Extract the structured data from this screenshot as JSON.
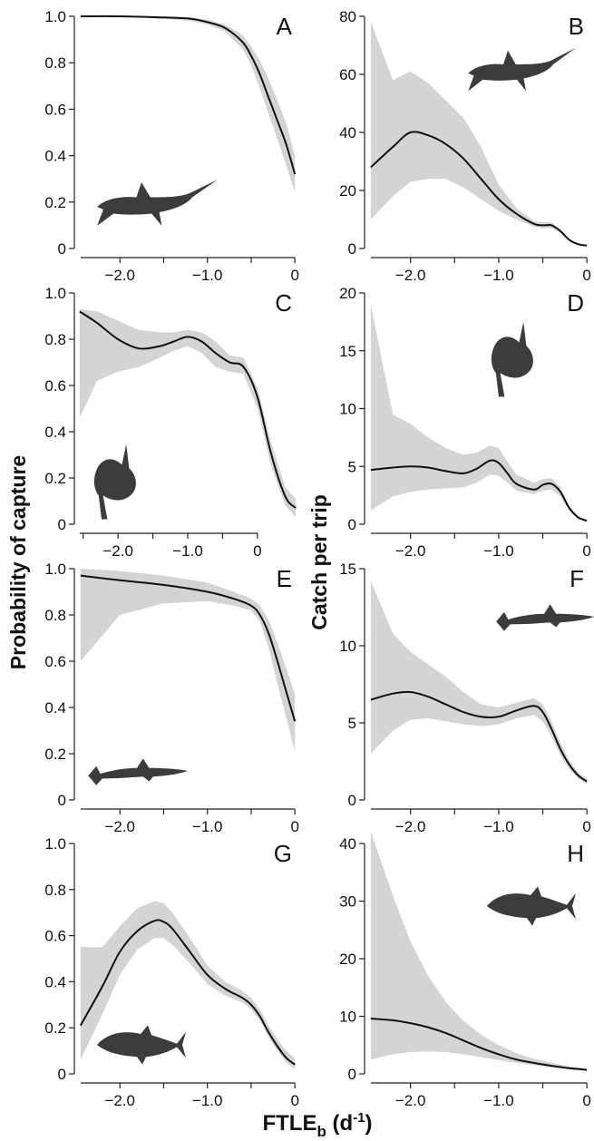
{
  "figure": {
    "ylabel_left": "Probability of capture",
    "ylabel_right": "Catch per trip",
    "xlabel_main": "FTLE",
    "xlabel_sub": "b",
    "xlabel_unit_open": " (d",
    "xlabel_unit_sup": "-1",
    "xlabel_unit_close": ")"
  },
  "colors": {
    "band": "#d4d4d4",
    "line": "#111111",
    "silhouette": "#3c3c3c"
  },
  "chart_data": [
    {
      "panel": "A",
      "type": "line",
      "species_icon": "swordfish-icon",
      "xlim": [
        -2.5,
        0.05
      ],
      "ylim": [
        0,
        1.0
      ],
      "xticks": [
        -2.0,
        -1.0,
        0
      ],
      "xtick_labels": [
        "−2.0",
        "−1.0",
        "0"
      ],
      "yticks": [
        0,
        0.2,
        0.4,
        0.6,
        0.8,
        1.0
      ],
      "ytick_labels": [
        "0",
        "0.2",
        "0.4",
        "0.6",
        "0.8",
        "1.0"
      ],
      "x": [
        -2.45,
        -2.0,
        -1.5,
        -1.2,
        -1.0,
        -0.8,
        -0.6,
        -0.5,
        -0.4,
        -0.3,
        -0.2,
        -0.1,
        0.0
      ],
      "y": [
        1.0,
        1.0,
        0.995,
        0.99,
        0.975,
        0.95,
        0.89,
        0.83,
        0.75,
        0.65,
        0.55,
        0.45,
        0.32
      ],
      "lower": [
        1.0,
        1.0,
        0.99,
        0.98,
        0.965,
        0.935,
        0.86,
        0.79,
        0.69,
        0.58,
        0.47,
        0.36,
        0.24
      ],
      "upper": [
        1.0,
        1.0,
        1.0,
        0.995,
        0.985,
        0.965,
        0.92,
        0.87,
        0.81,
        0.73,
        0.64,
        0.54,
        0.4
      ]
    },
    {
      "panel": "B",
      "type": "line",
      "species_icon": "swordfish-icon",
      "xlim": [
        -2.5,
        0.05
      ],
      "ylim": [
        0,
        80
      ],
      "xticks": [
        -2.0,
        -1.0,
        0
      ],
      "xtick_labels": [
        "−2.0",
        "−1.0",
        "0"
      ],
      "yticks": [
        0,
        20,
        40,
        60,
        80
      ],
      "ytick_labels": [
        "0",
        "20",
        "40",
        "60",
        "80"
      ],
      "x": [
        -2.45,
        -2.2,
        -2.0,
        -1.8,
        -1.6,
        -1.4,
        -1.2,
        -1.0,
        -0.8,
        -0.6,
        -0.5,
        -0.4,
        -0.3,
        -0.2,
        -0.1,
        0.0
      ],
      "y": [
        28,
        35,
        40,
        39,
        36,
        31,
        24,
        17,
        12,
        8.5,
        8,
        8,
        6,
        3,
        1.5,
        1
      ],
      "lower": [
        10,
        18,
        23,
        24,
        24,
        21,
        17,
        13,
        10,
        7.5,
        7,
        7,
        5.5,
        2.8,
        1.3,
        0.8
      ],
      "upper": [
        78,
        58,
        61,
        57,
        51,
        45,
        35,
        22,
        14,
        9.5,
        9,
        9,
        6.5,
        3.3,
        1.7,
        1.2
      ]
    },
    {
      "panel": "C",
      "type": "line",
      "species_icon": "sunfish-icon",
      "xlim": [
        -2.6,
        0.6
      ],
      "ylim": [
        0,
        1.0
      ],
      "xticks": [
        -2.0,
        -1.0,
        0
      ],
      "xtick_labels": [
        "−2.0",
        "−1.0",
        "0"
      ],
      "yticks": [
        0,
        0.2,
        0.4,
        0.6,
        0.8,
        1.0
      ],
      "ytick_labels": [
        "0",
        "0.2",
        "0.4",
        "0.6",
        "0.8",
        "1.0"
      ],
      "x": [
        -2.55,
        -2.3,
        -2.0,
        -1.7,
        -1.4,
        -1.2,
        -1.0,
        -0.8,
        -0.6,
        -0.4,
        -0.2,
        0.0,
        0.2,
        0.4,
        0.55
      ],
      "y": [
        0.92,
        0.87,
        0.8,
        0.76,
        0.77,
        0.79,
        0.81,
        0.79,
        0.74,
        0.7,
        0.68,
        0.55,
        0.3,
        0.12,
        0.07
      ],
      "lower": [
        0.46,
        0.62,
        0.66,
        0.68,
        0.72,
        0.75,
        0.77,
        0.74,
        0.68,
        0.66,
        0.65,
        0.5,
        0.25,
        0.08,
        0.03
      ],
      "upper": [
        0.93,
        0.92,
        0.88,
        0.84,
        0.83,
        0.83,
        0.84,
        0.83,
        0.79,
        0.73,
        0.72,
        0.59,
        0.35,
        0.16,
        0.11
      ]
    },
    {
      "panel": "D",
      "type": "line",
      "species_icon": "sunfish-icon",
      "xlim": [
        -2.5,
        0.05
      ],
      "ylim": [
        0,
        20
      ],
      "xticks": [
        -2.0,
        -1.0,
        0
      ],
      "xtick_labels": [
        "−2.0",
        "−1.0",
        "0"
      ],
      "yticks": [
        0,
        5,
        10,
        15,
        20
      ],
      "ytick_labels": [
        "0",
        "5",
        "10",
        "15",
        "20"
      ],
      "x": [
        -2.45,
        -2.2,
        -2.0,
        -1.8,
        -1.6,
        -1.4,
        -1.25,
        -1.1,
        -1.0,
        -0.9,
        -0.8,
        -0.6,
        -0.5,
        -0.4,
        -0.3,
        -0.2,
        -0.1,
        0.0
      ],
      "y": [
        4.7,
        4.9,
        5.0,
        4.9,
        4.6,
        4.4,
        4.8,
        5.5,
        5.3,
        4.4,
        3.5,
        3.0,
        3.4,
        3.5,
        2.8,
        1.4,
        0.6,
        0.3
      ],
      "lower": [
        1.2,
        2.4,
        2.8,
        3.0,
        3.1,
        3.2,
        3.6,
        4.3,
        4.2,
        3.6,
        2.9,
        2.6,
        2.9,
        3.0,
        2.4,
        1.2,
        0.5,
        0.2
      ],
      "upper": [
        19,
        9.5,
        8.7,
        7.5,
        6.6,
        6.0,
        6.2,
        6.8,
        6.6,
        5.4,
        4.3,
        3.6,
        3.9,
        4.0,
        3.2,
        1.6,
        0.7,
        0.4
      ]
    },
    {
      "panel": "E",
      "type": "line",
      "species_icon": "shark-icon",
      "xlim": [
        -2.5,
        0.05
      ],
      "ylim": [
        0,
        1.0
      ],
      "xticks": [
        -2.0,
        -1.0,
        0
      ],
      "xtick_labels": [
        "−2.0",
        "−1.0",
        "0"
      ],
      "yticks": [
        0,
        0.2,
        0.4,
        0.6,
        0.8,
        1.0
      ],
      "ytick_labels": [
        "0",
        "0.2",
        "0.4",
        "0.6",
        "0.8",
        "1.0"
      ],
      "x": [
        -2.45,
        -2.0,
        -1.5,
        -1.0,
        -0.7,
        -0.5,
        -0.4,
        -0.3,
        -0.2,
        -0.1,
        0.0
      ],
      "y": [
        0.97,
        0.95,
        0.93,
        0.9,
        0.87,
        0.84,
        0.8,
        0.72,
        0.6,
        0.47,
        0.34
      ],
      "lower": [
        0.6,
        0.8,
        0.85,
        0.86,
        0.84,
        0.82,
        0.77,
        0.66,
        0.5,
        0.36,
        0.21
      ],
      "upper": [
        1.0,
        0.99,
        0.97,
        0.94,
        0.9,
        0.87,
        0.84,
        0.78,
        0.68,
        0.57,
        0.46
      ]
    },
    {
      "panel": "F",
      "type": "line",
      "species_icon": "shark-icon",
      "xlim": [
        -2.5,
        0.05
      ],
      "ylim": [
        0,
        15
      ],
      "xticks": [
        -2.0,
        -1.0,
        0
      ],
      "xtick_labels": [
        "−2.0",
        "−1.0",
        "0"
      ],
      "yticks": [
        0,
        5,
        10,
        15
      ],
      "ytick_labels": [
        "0",
        "5",
        "10",
        "15"
      ],
      "x": [
        -2.45,
        -2.2,
        -2.0,
        -1.8,
        -1.6,
        -1.4,
        -1.2,
        -1.0,
        -0.8,
        -0.6,
        -0.5,
        -0.4,
        -0.3,
        -0.2,
        -0.1,
        0.0
      ],
      "y": [
        6.5,
        6.9,
        7.0,
        6.7,
        6.2,
        5.7,
        5.4,
        5.4,
        5.8,
        6.1,
        5.7,
        4.6,
        3.3,
        2.3,
        1.6,
        1.2
      ],
      "lower": [
        3.0,
        4.5,
        5.2,
        5.3,
        5.1,
        4.9,
        4.8,
        4.9,
        5.3,
        5.5,
        5.1,
        4.1,
        2.9,
        2.0,
        1.4,
        1.0
      ],
      "upper": [
        14.2,
        10.8,
        9.6,
        8.8,
        8.0,
        7.0,
        6.2,
        6.0,
        6.3,
        6.6,
        6.2,
        5.1,
        3.7,
        2.6,
        1.8,
        1.4
      ]
    },
    {
      "panel": "G",
      "type": "line",
      "species_icon": "tuna-icon",
      "xlim": [
        -2.5,
        0.05
      ],
      "ylim": [
        0,
        1.0
      ],
      "xticks": [
        -2.0,
        -1.0,
        0
      ],
      "xtick_labels": [
        "−2.0",
        "−1.0",
        "0"
      ],
      "yticks": [
        0,
        0.2,
        0.4,
        0.6,
        0.8,
        1.0
      ],
      "ytick_labels": [
        "0",
        "0.2",
        "0.4",
        "0.6",
        "0.8",
        "1.0"
      ],
      "x": [
        -2.45,
        -2.2,
        -2.0,
        -1.8,
        -1.6,
        -1.5,
        -1.4,
        -1.2,
        -1.0,
        -0.8,
        -0.6,
        -0.5,
        -0.4,
        -0.3,
        -0.2,
        -0.1,
        0.0
      ],
      "y": [
        0.21,
        0.38,
        0.53,
        0.62,
        0.665,
        0.66,
        0.63,
        0.53,
        0.43,
        0.37,
        0.33,
        0.3,
        0.25,
        0.18,
        0.12,
        0.07,
        0.04
      ],
      "lower": [
        0.06,
        0.26,
        0.43,
        0.54,
        0.59,
        0.59,
        0.56,
        0.48,
        0.39,
        0.34,
        0.31,
        0.28,
        0.23,
        0.16,
        0.1,
        0.05,
        0.02
      ],
      "upper": [
        0.55,
        0.55,
        0.64,
        0.72,
        0.75,
        0.74,
        0.7,
        0.59,
        0.47,
        0.4,
        0.36,
        0.33,
        0.28,
        0.21,
        0.15,
        0.1,
        0.07
      ]
    },
    {
      "panel": "H",
      "type": "line",
      "species_icon": "tuna-icon",
      "xlim": [
        -2.5,
        0.05
      ],
      "ylim": [
        0,
        40
      ],
      "xticks": [
        -2.0,
        -1.0,
        0
      ],
      "xtick_labels": [
        "−2.0",
        "−1.0",
        "0"
      ],
      "yticks": [
        0,
        10,
        20,
        30,
        40
      ],
      "ytick_labels": [
        "0",
        "10",
        "20",
        "30",
        "40"
      ],
      "x": [
        -2.45,
        -2.2,
        -2.0,
        -1.8,
        -1.6,
        -1.4,
        -1.2,
        -1.0,
        -0.8,
        -0.6,
        -0.4,
        -0.2,
        0.0
      ],
      "y": [
        9.6,
        9.3,
        8.8,
        8.1,
        7.1,
        5.8,
        4.5,
        3.4,
        2.5,
        1.9,
        1.4,
        1.0,
        0.7
      ],
      "lower": [
        2.5,
        3.4,
        3.8,
        3.9,
        3.8,
        3.4,
        2.9,
        2.4,
        1.9,
        1.5,
        1.1,
        0.8,
        0.5
      ],
      "upper": [
        42,
        31,
        23,
        17,
        12.5,
        9.2,
        6.8,
        5.0,
        3.6,
        2.6,
        1.9,
        1.3,
        0.9
      ]
    }
  ]
}
